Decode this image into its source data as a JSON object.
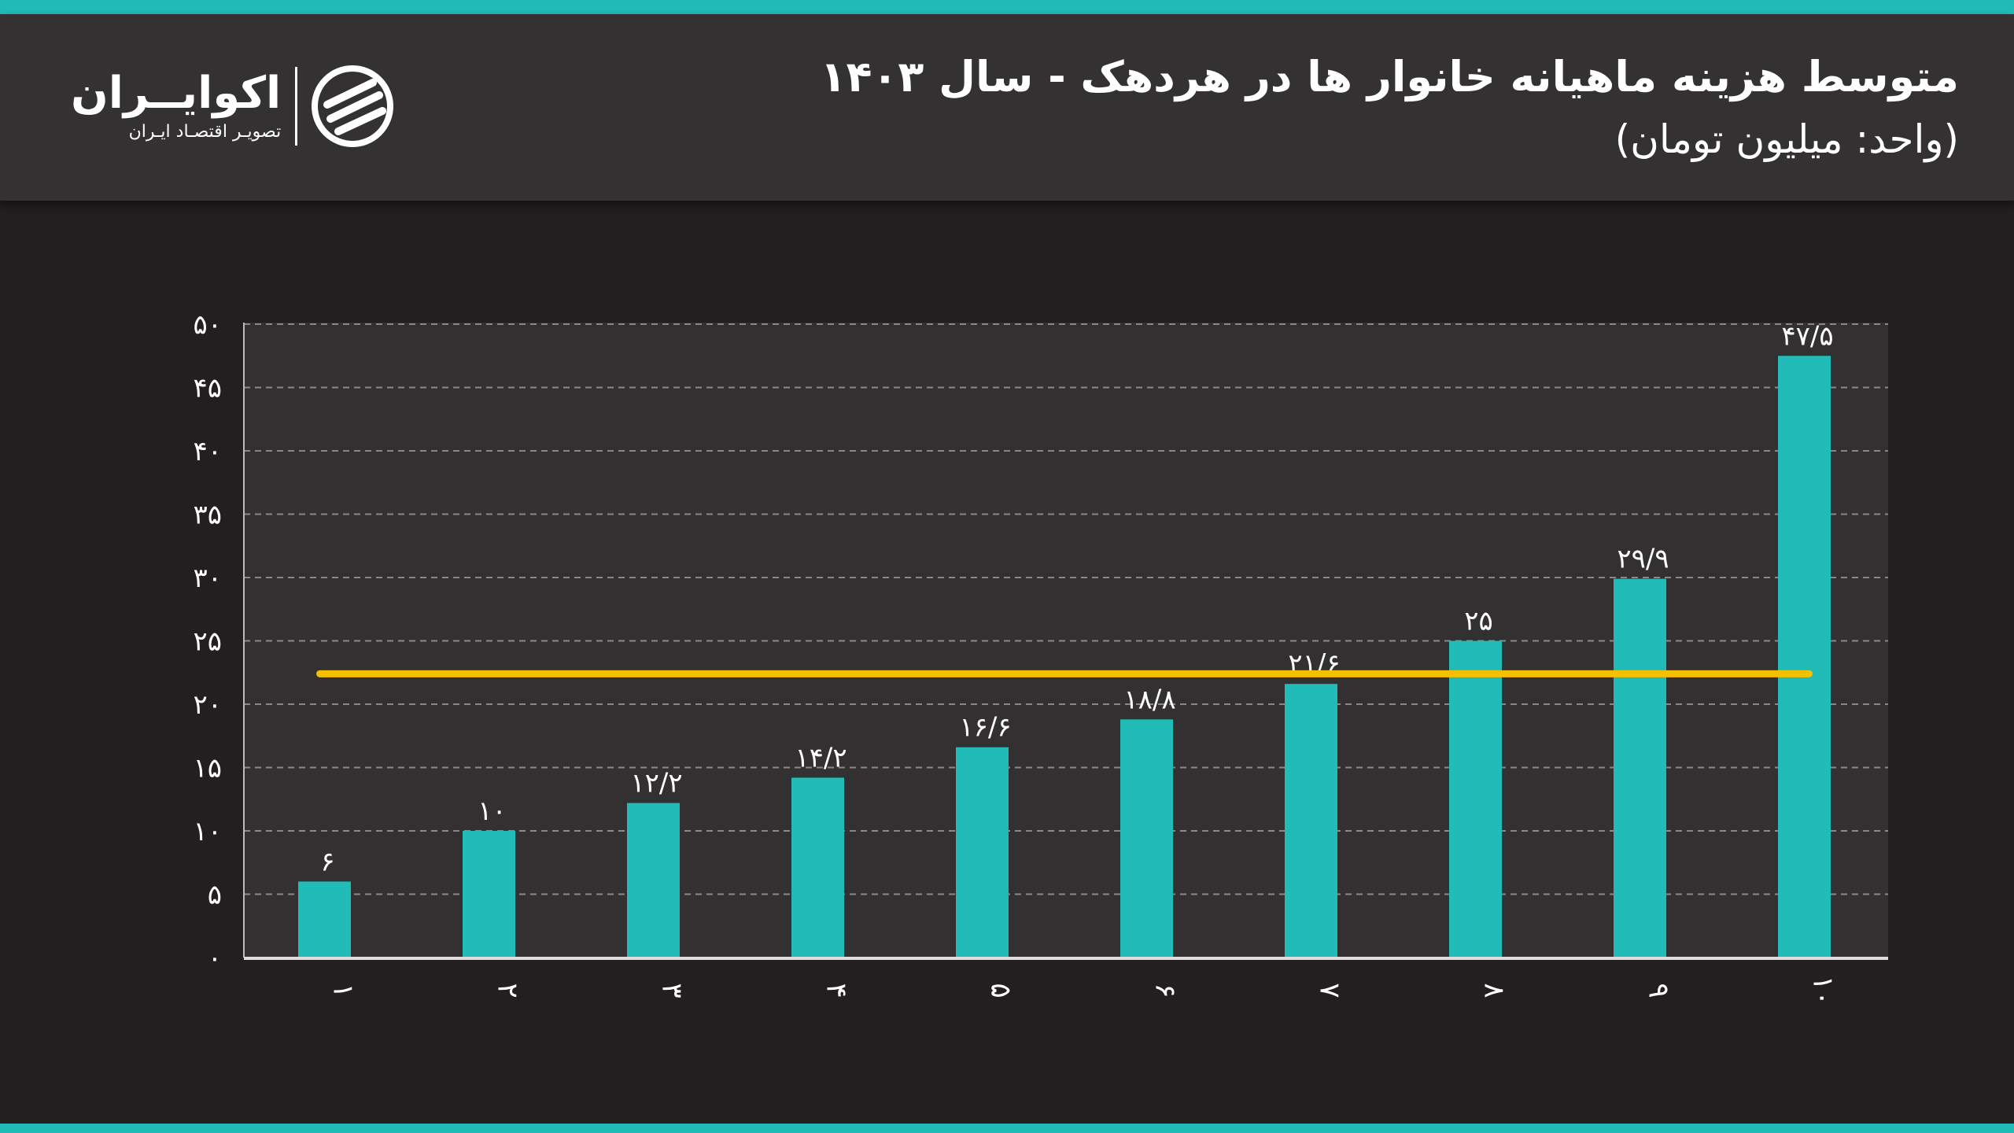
{
  "header": {
    "title": "متوسط هزینه ماهیانه خانوار ها در هردهک - سال ۱۴۰۳",
    "subtitle": "(واحد: میلیون تومان)",
    "logo": {
      "name": "اکوایــران",
      "tagline": "تصویـر اقتصـاد ایـران"
    }
  },
  "colors": {
    "bar": "#22bcb8",
    "average_line": "#f5c000",
    "background": "#231f20",
    "plot_background": "#333031",
    "accent": "#22bcb8"
  },
  "chart_data": {
    "type": "bar",
    "categories": [
      "۱",
      "۲",
      "۳",
      "۴",
      "۵",
      "۶",
      "۷",
      "۸",
      "۹",
      "۱۰"
    ],
    "values": [
      6,
      10,
      12.2,
      14.2,
      16.6,
      18.8,
      21.6,
      25,
      29.9,
      47.5
    ],
    "data_labels": [
      "۶",
      "۱۰",
      "۱۲/۲",
      "۱۴/۲",
      "۱۶/۶",
      "۱۸/۸",
      "۲۱/۶",
      "۲۵",
      "۲۹/۹",
      "۴۷/۵"
    ],
    "average_line": 22.4,
    "ylim": [
      0,
      50
    ],
    "yticks": [
      0,
      5,
      10,
      15,
      20,
      25,
      30,
      35,
      40,
      45,
      50
    ],
    "ytick_labels": [
      "۰",
      "۵",
      "۱۰",
      "۱۵",
      "۲۰",
      "۲۵",
      "۳۰",
      "۳۵",
      "۴۰",
      "۴۵",
      "۵۰"
    ],
    "grid": true,
    "legend": "none"
  }
}
